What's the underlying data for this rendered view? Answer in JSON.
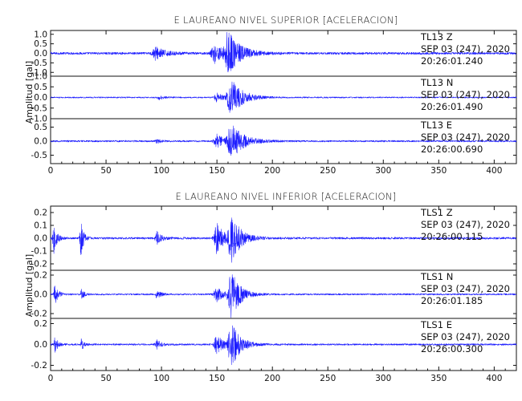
{
  "chart_data": [
    {
      "type": "line",
      "title": "E LAUREANO NIVEL SUPERIOR [ACELERACION]",
      "ylabel": "Amplitud [gal]",
      "xlim": [
        0,
        420
      ],
      "x_ticks": [
        "0",
        "50",
        "100",
        "150",
        "200",
        "250",
        "300",
        "350",
        "400"
      ],
      "panels": [
        {
          "channel": "Z",
          "labels": [
            "TL13   Z",
            "SEP 03 (247), 2020",
            "20:26:01.240"
          ],
          "ylim": [
            -1.2,
            1.2
          ],
          "y_ticks": [
            "1.0",
            "0.5",
            "0.0",
            "-0.5",
            "-1.0"
          ],
          "series": [
            {
              "noise": 0.06,
              "bursts": [
                [
                  95,
                  6,
                  0.35
                ],
                [
                  148,
                  6,
                  0.5
                ],
                [
                  160,
                  8,
                  1.2
                ],
                [
                  430,
                  5,
                  0.5
                ]
              ]
            }
          ]
        },
        {
          "channel": "N",
          "labels": [
            "TL13   N",
            "SEP 03 (247), 2020",
            "20:26:01.490"
          ],
          "ylim": [
            -1.0,
            1.0
          ],
          "y_ticks": [
            "1.0",
            "0.5",
            "0.0",
            "-0.5",
            "-1.0"
          ],
          "series": [
            {
              "noise": 0.03,
              "bursts": [
                [
                  98,
                  3,
                  0.1
                ],
                [
                  150,
                  5,
                  0.2
                ],
                [
                  163,
                  8,
                  0.85
                ]
              ]
            }
          ]
        },
        {
          "channel": "E",
          "labels": [
            "TL13   E",
            "SEP 03 (247), 2020",
            "20:26:00.690"
          ],
          "ylim": [
            -0.8,
            0.8
          ],
          "y_ticks": [
            "0.5",
            "0.0",
            "-0.5"
          ],
          "series": [
            {
              "noise": 0.03,
              "bursts": [
                [
                  96,
                  3,
                  0.08
                ],
                [
                  150,
                  5,
                  0.25
                ],
                [
                  163,
                  8,
                  0.65
                ]
              ]
            }
          ]
        }
      ]
    },
    {
      "type": "line",
      "title": "E LAUREANO NIVEL INFERIOR [ACELERACION]",
      "ylabel": "Amplitud [gal]",
      "xlim": [
        0,
        420
      ],
      "x_ticks": [
        "0",
        "50",
        "100",
        "150",
        "200",
        "250",
        "300",
        "350",
        "400"
      ],
      "panels": [
        {
          "channel": "Z",
          "labels": [
            "TLS1   Z",
            "SEP 03 (247), 2020",
            "20:26:00.115"
          ],
          "ylim": [
            -0.25,
            0.25
          ],
          "y_ticks": [
            "0.2",
            "0.1",
            "0.0",
            "-0.1",
            "-0.2"
          ],
          "series": [
            {
              "noise": 0.008,
              "bursts": [
                [
                  3,
                  2,
                  0.12
                ],
                [
                  27,
                  1.5,
                  0.2
                ],
                [
                  96,
                  3,
                  0.05
                ],
                [
                  150,
                  5,
                  0.12
                ],
                [
                  163,
                  6,
                  0.2
                ]
              ]
            }
          ]
        },
        {
          "channel": "N",
          "labels": [
            "TLS1   N",
            "SEP 03 (247), 2020",
            "20:26:01.185"
          ],
          "ylim": [
            -0.25,
            0.25
          ],
          "y_ticks": [
            "0.2",
            "0.0",
            "-0.2"
          ],
          "series": [
            {
              "noise": 0.008,
              "bursts": [
                [
                  4,
                  2,
                  0.12
                ],
                [
                  28,
                  1.5,
                  0.07
                ],
                [
                  96,
                  3,
                  0.04
                ],
                [
                  150,
                  5,
                  0.08
                ],
                [
                  163,
                  6,
                  0.25
                ]
              ]
            }
          ]
        },
        {
          "channel": "E",
          "labels": [
            "TLS1   E",
            "SEP 03 (247), 2020",
            "20:26:00.300"
          ],
          "ylim": [
            -0.25,
            0.25
          ],
          "y_ticks": [
            "0.2",
            "0.0",
            "-0.2"
          ],
          "series": [
            {
              "noise": 0.008,
              "bursts": [
                [
                  4,
                  2,
                  0.08
                ],
                [
                  28,
                  1.5,
                  0.06
                ],
                [
                  96,
                  3,
                  0.04
                ],
                [
                  150,
                  5,
                  0.09
                ],
                [
                  163,
                  6,
                  0.22
                ]
              ]
            }
          ]
        }
      ]
    }
  ],
  "colors": {
    "trace": "#1a1aff",
    "axes": "#111111",
    "annotation": "#555555"
  }
}
